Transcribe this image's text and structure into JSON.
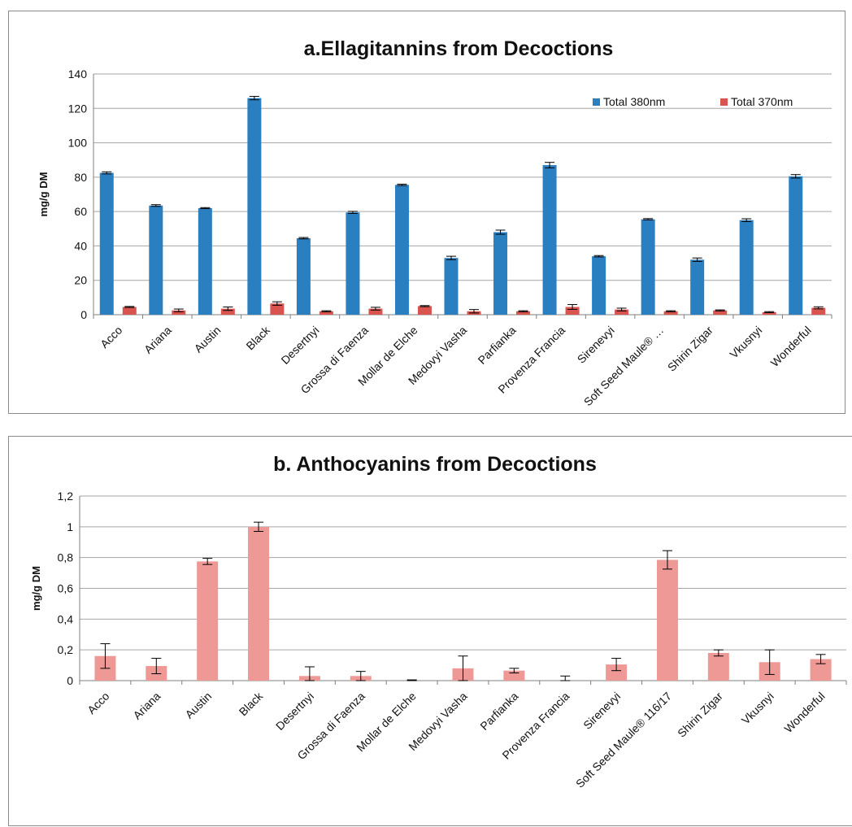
{
  "chart_data": [
    {
      "type": "bar",
      "title": "a.Ellagitannins from Decoctions",
      "ylabel": "mg/g DM",
      "xlabel": "",
      "ylim": [
        0,
        140
      ],
      "yticks": [
        "0",
        "20",
        "40",
        "60",
        "80",
        "100",
        "120",
        "140"
      ],
      "grid": true,
      "legend_position": "top-right",
      "categories": [
        "Acco",
        "Ariana",
        "Austin",
        "Black",
        "Desertnyi",
        "Grossa di Faenza",
        "Mollar de Elche",
        "Medovyi Vasha",
        "Parfianka",
        "Provenza Francia",
        "Sirenevyi",
        "Soft Seed Maule® …",
        "Shirin Zigar",
        "Vkusnyi",
        "Wonderful"
      ],
      "series": [
        {
          "name": "Total 380nm",
          "color": "#2a7fc1",
          "values": [
            82.5,
            63.5,
            62,
            126,
            44.5,
            59.5,
            75.5,
            33,
            48,
            87,
            34,
            55.5,
            32,
            55,
            80.5
          ],
          "errors": [
            0.6,
            0.5,
            0.3,
            1.0,
            0.4,
            0.6,
            0.4,
            1.0,
            1.2,
            1.6,
            0.4,
            0.4,
            1.0,
            0.8,
            1.0
          ]
        },
        {
          "name": "Total 370nm",
          "color": "#d9534f",
          "values": [
            4.5,
            2.5,
            3.5,
            6.5,
            2,
            3.5,
            5,
            2,
            2,
            4.5,
            3,
            2,
            2.5,
            1.5,
            4
          ],
          "errors": [
            0.3,
            0.8,
            1.0,
            1.0,
            0.3,
            0.8,
            0.3,
            1.0,
            0.3,
            1.4,
            0.8,
            0.3,
            0.3,
            0.3,
            0.6
          ]
        }
      ]
    },
    {
      "type": "bar",
      "title": "b. Anthocyanins from Decoctions",
      "ylabel": "mg/g DM",
      "xlabel": "",
      "ylim": [
        0,
        1.2
      ],
      "yticks": [
        "0",
        "0,2",
        "0,4",
        "0,6",
        "0,8",
        "1",
        "1,2"
      ],
      "grid": true,
      "categories": [
        "Acco",
        "Ariana",
        "Austin",
        "Black",
        "Desertnyi",
        "Grossa di Faenza",
        "Mollar de Elche",
        "Medovyi Vasha",
        "Parfianka",
        "Provenza Francia",
        "Sirenevyi",
        "Soft Seed Maule® 116/17",
        "Shirin Zigar",
        "Vkusnyi",
        "Wonderful"
      ],
      "series": [
        {
          "color": "#ee9995",
          "values": [
            0.16,
            0.095,
            0.775,
            1.0,
            0.03,
            0.03,
            0.0,
            0.08,
            0.065,
            0.0,
            0.105,
            0.785,
            0.18,
            0.12,
            0.14
          ],
          "errors": [
            0.08,
            0.05,
            0.02,
            0.03,
            0.06,
            0.03,
            0.005,
            0.08,
            0.015,
            0.03,
            0.04,
            0.06,
            0.02,
            0.08,
            0.03
          ]
        }
      ]
    }
  ]
}
